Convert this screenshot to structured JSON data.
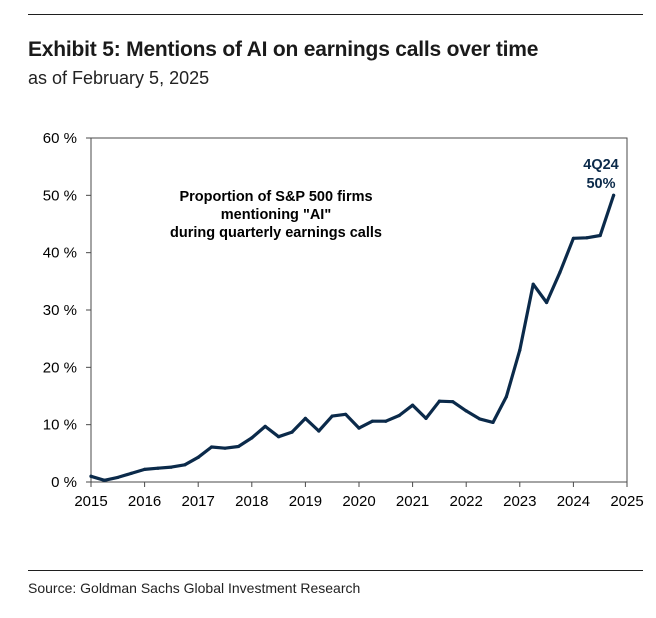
{
  "header": {
    "title": "Exhibit 5: Mentions of AI on earnings calls over time",
    "subtitle": "as of February 5, 2025"
  },
  "footer": {
    "source": "Source: Goldman Sachs Global Investment Research"
  },
  "colors": {
    "line": "#0b2a4a",
    "annotation": "#0b2a4a",
    "axis": "#4a4a4a"
  },
  "chart_data": {
    "type": "line",
    "title": "Exhibit 5: Mentions of AI on earnings calls over time",
    "xlabel": "",
    "ylabel": "",
    "xlim": [
      2015,
      2025
    ],
    "ylim": [
      0,
      60
    ],
    "grid": false,
    "x_ticks": [
      2015,
      2016,
      2017,
      2018,
      2019,
      2020,
      2021,
      2022,
      2023,
      2024,
      2025
    ],
    "x_tick_labels": [
      "2015",
      "2016",
      "2017",
      "2018",
      "2019",
      "2020",
      "2021",
      "2022",
      "2023",
      "2024",
      "2025"
    ],
    "y_ticks": [
      0,
      10,
      20,
      30,
      40,
      50,
      60
    ],
    "y_tick_labels": [
      "0 %",
      "10 %",
      "20 %",
      "30 %",
      "40 %",
      "50 %",
      "60 %"
    ],
    "series": [
      {
        "name": "Proportion of S&P 500 firms mentioning \"AI\" during quarterly earnings calls",
        "x": [
          2015.0,
          2015.25,
          2015.5,
          2015.75,
          2016.0,
          2016.25,
          2016.5,
          2016.75,
          2017.0,
          2017.25,
          2017.5,
          2017.75,
          2018.0,
          2018.25,
          2018.5,
          2018.75,
          2019.0,
          2019.25,
          2019.5,
          2019.75,
          2020.0,
          2020.25,
          2020.5,
          2020.75,
          2021.0,
          2021.25,
          2021.5,
          2021.75,
          2022.0,
          2022.25,
          2022.5,
          2022.75,
          2023.0,
          2023.25,
          2023.5,
          2023.75,
          2024.0,
          2024.25,
          2024.5,
          2024.75
        ],
        "values": [
          1.0,
          0.3,
          0.8,
          1.5,
          2.2,
          2.4,
          2.6,
          3.0,
          4.3,
          6.1,
          5.9,
          6.2,
          7.7,
          9.7,
          7.9,
          8.7,
          11.1,
          8.9,
          11.5,
          11.8,
          9.4,
          10.6,
          10.6,
          11.6,
          13.4,
          11.1,
          14.1,
          14.0,
          12.4,
          11.0,
          10.4,
          14.9,
          23.0,
          34.5,
          31.3,
          36.6,
          42.5,
          42.6,
          43.0,
          50.0
        ]
      }
    ],
    "annotations": [
      {
        "text": "Proportion of S&P 500 firms",
        "position": "upper-left"
      },
      {
        "text": "mentioning \"AI\"",
        "position": "upper-left"
      },
      {
        "text": "during quarterly earnings calls",
        "position": "upper-left"
      },
      {
        "text": "4Q24",
        "position": "last-point"
      },
      {
        "text": "50%",
        "position": "last-point"
      }
    ]
  }
}
